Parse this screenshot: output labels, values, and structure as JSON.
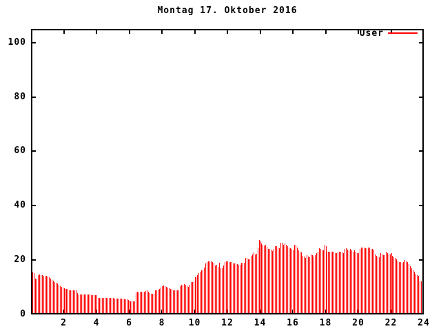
{
  "title": "Montag 17. Oktober 2016",
  "legend": {
    "label": "User"
  },
  "colors": {
    "bar": "#ff0000",
    "axis": "#000000",
    "background": "#ffffff",
    "text": "#000000"
  },
  "chart_data": {
    "type": "bar",
    "style": "impulses",
    "title": "Montag 17. Oktober 2016",
    "xlabel": "",
    "ylabel": "",
    "xlim": [
      0,
      24
    ],
    "ylim": [
      0,
      105
    ],
    "x_ticks": [
      2,
      4,
      6,
      8,
      10,
      12,
      14,
      16,
      18,
      20,
      22,
      24
    ],
    "y_ticks": [
      0,
      20,
      40,
      60,
      80,
      100
    ],
    "grid": false,
    "legend_position": "top-right-inside",
    "sample_interval_minutes": 5,
    "first_sample_hour": 0.0833,
    "series": [
      {
        "name": "User",
        "color": "#ff0000",
        "values": [
          15.5,
          15.2,
          13.2,
          13.0,
          14.5,
          14.6,
          14.5,
          14.4,
          14.3,
          14.3,
          14.2,
          14.0,
          13.8,
          13.3,
          12.8,
          12.5,
          12.0,
          11.6,
          11.3,
          11.0,
          10.5,
          10.1,
          9.8,
          9.7,
          9.4,
          9.4,
          9.3,
          9.0,
          8.9,
          8.9,
          8.9,
          8.9,
          8.8,
          7.8,
          7.4,
          7.3,
          7.3,
          7.3,
          7.3,
          7.3,
          7.3,
          7.3,
          7.3,
          7.2,
          7.2,
          7.2,
          7.1,
          7.0,
          6.2,
          6.1,
          6.1,
          6.1,
          6.0,
          6.0,
          6.0,
          6.0,
          6.0,
          6.0,
          6.0,
          6.0,
          5.9,
          5.9,
          5.9,
          5.8,
          5.8,
          5.8,
          5.8,
          5.7,
          5.7,
          5.6,
          5.4,
          5.0,
          4.9,
          4.8,
          4.8,
          4.9,
          8.0,
          8.3,
          8.2,
          8.4,
          8.3,
          8.2,
          8.3,
          8.5,
          8.9,
          8.3,
          7.8,
          7.7,
          7.6,
          7.7,
          8.8,
          9.0,
          9.1,
          9.5,
          10.0,
          10.5,
          10.7,
          10.4,
          10.2,
          10.0,
          9.6,
          9.4,
          9.3,
          8.9,
          8.8,
          8.8,
          8.9,
          9.0,
          10.5,
          10.8,
          11.0,
          11.2,
          10.8,
          10.3,
          10.2,
          11.0,
          11.8,
          12.0,
          12.2,
          13.8,
          14.0,
          14.5,
          15.3,
          15.8,
          16.2,
          16.5,
          17.3,
          18.7,
          19.4,
          19.6,
          19.6,
          19.6,
          19.4,
          19.0,
          17.9,
          18.2,
          17.5,
          19.0,
          17.1,
          16.9,
          17.9,
          19.4,
          19.5,
          19.6,
          19.2,
          19.3,
          19.2,
          18.7,
          18.7,
          18.7,
          18.4,
          18.2,
          18.2,
          19.0,
          19.0,
          19.0,
          20.7,
          20.7,
          20.4,
          20.4,
          21.5,
          22.1,
          22.8,
          22.1,
          22.3,
          24.3,
          27.5,
          26.9,
          26.0,
          25.5,
          25.3,
          25.7,
          24.8,
          24.2,
          24.0,
          23.8,
          23.3,
          24.0,
          25.0,
          25.2,
          24.5,
          24.4,
          26.3,
          26.5,
          25.7,
          26.0,
          25.5,
          25.0,
          24.7,
          24.4,
          24.0,
          23.5,
          25.5,
          25.7,
          24.5,
          23.5,
          23.0,
          22.7,
          21.5,
          21.2,
          20.7,
          21.7,
          21.3,
          21.0,
          22.0,
          21.8,
          21.4,
          21.7,
          22.5,
          23.0,
          24.4,
          24.0,
          23.6,
          23.5,
          25.7,
          25.0,
          23.0,
          23.0,
          23.1,
          23.0,
          23.0,
          23.0,
          22.6,
          22.5,
          22.8,
          23.0,
          23.2,
          22.8,
          22.6,
          24.0,
          24.4,
          23.8,
          23.5,
          24.0,
          23.6,
          23.2,
          23.5,
          23.0,
          22.6,
          22.5,
          24.2,
          24.5,
          24.7,
          24.5,
          24.4,
          24.4,
          24.7,
          24.5,
          24.2,
          24.0,
          23.8,
          22.0,
          21.5,
          21.2,
          21.0,
          22.5,
          22.2,
          21.8,
          21.7,
          23.0,
          22.5,
          22.2,
          22.0,
          22.5,
          21.5,
          21.0,
          20.8,
          20.2,
          19.8,
          19.4,
          19.2,
          19.0,
          19.2,
          20.0,
          19.6,
          19.4,
          18.5,
          17.8,
          17.0,
          16.3,
          15.8,
          15.0,
          14.5,
          14.2,
          12.5,
          12.2,
          12.0
        ]
      }
    ]
  }
}
